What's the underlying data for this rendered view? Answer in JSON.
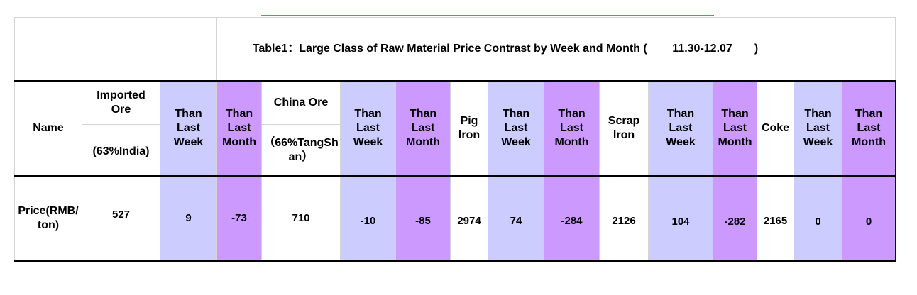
{
  "table": {
    "title": "Table1：Large Class of Raw Material Price Contrast by Week and Month (        11.30-12.07       )",
    "headers": {
      "name": "Name",
      "imported_ore": "Imported Ore",
      "imported_ore_sub": "(63%India)",
      "china_ore": "China Ore",
      "china_ore_sub": "（66%TangShan）",
      "pig_iron": "Pig Iron",
      "scrap_iron": "Scrap Iron",
      "coke": "Coke",
      "than_last_week": "Than Last Week",
      "than_last_month": "Than Last Month"
    },
    "row": {
      "label": "Price(RMB/ton)",
      "imported_ore": "527",
      "imported_week": "9",
      "imported_month": "-73",
      "china_ore": "710",
      "china_week": "-10",
      "china_month": "-85",
      "pig_iron": "2974",
      "pig_week": "74",
      "pig_month": "-284",
      "scrap_iron": "2126",
      "scrap_week": "104",
      "scrap_month": "-282",
      "coke": "2165",
      "coke_week": "0",
      "coke_month": "0"
    }
  },
  "colors": {
    "week_fill": "#ccccff",
    "month_fill": "#cc99ff",
    "accent_line": "#55aa33"
  }
}
